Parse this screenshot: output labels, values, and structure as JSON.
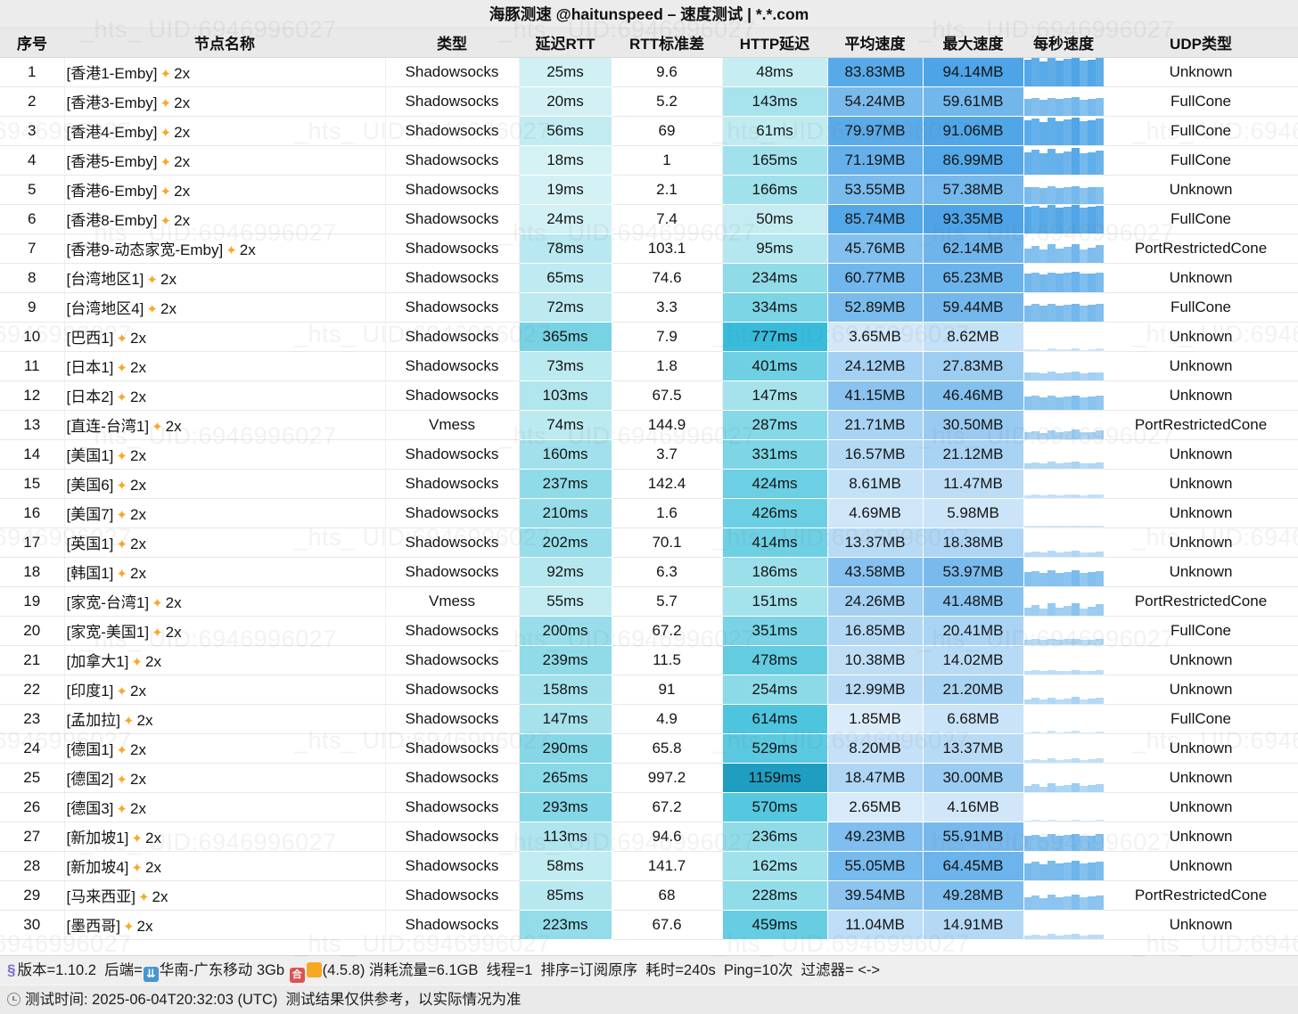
{
  "title": "海豚测速 @haitunspeed – 速度测试 | *.*.com",
  "watermark": {
    "text": "_hts_ UID:6946996027"
  },
  "icons": {
    "sparkles": "✦",
    "dna": "§",
    "clock": "css-circle-clock",
    "download": "⇊",
    "he_badge": "合",
    "orange_badge": ""
  },
  "colors": {
    "titlebar_bg": "#ececec",
    "header_bg": "#e9e9e9",
    "footer_bg": "#efefef",
    "latency_low": "#e4fbfc",
    "latency_high": "#1f9fb8",
    "speed_low": "#e8f3fc",
    "speed_high": "#4aa5e6",
    "sparkle_orange": "#f7a928"
  },
  "table": {
    "columns": [
      "序号",
      "节点名称",
      "类型",
      "延迟RTT",
      "RTT标准差",
      "HTTP延迟",
      "平均速度",
      "最大速度",
      "每秒速度",
      "UDP类型"
    ],
    "rows": [
      {
        "no": "1",
        "name": "[香港1-Emby]",
        "suffix": "2x",
        "type": "Shadowsocks",
        "rtt": "25ms",
        "std": "9.6",
        "http": "48ms",
        "avg": "83.83MB",
        "max": "94.14MB",
        "udp": "Unknown",
        "bars": [
          0.92,
          0.97,
          0.86,
          0.99,
          0.9,
          0.95,
          0.99,
          0.88,
          0.93,
          0.97
        ]
      },
      {
        "no": "2",
        "name": "[香港3-Emby]",
        "suffix": "2x",
        "type": "Shadowsocks",
        "rtt": "20ms",
        "std": "5.2",
        "http": "143ms",
        "avg": "54.24MB",
        "max": "59.61MB",
        "udp": "FullCone",
        "bars": [
          0.58,
          0.61,
          0.55,
          0.62,
          0.57,
          0.6,
          0.63,
          0.56,
          0.59,
          0.61
        ]
      },
      {
        "no": "3",
        "name": "[香港4-Emby]",
        "suffix": "2x",
        "type": "Shadowsocks",
        "rtt": "56ms",
        "std": "69",
        "http": "61ms",
        "avg": "79.97MB",
        "max": "91.06MB",
        "udp": "FullCone",
        "bars": [
          0.85,
          0.92,
          0.8,
          0.95,
          0.83,
          0.88,
          0.96,
          0.82,
          0.87,
          0.91
        ]
      },
      {
        "no": "4",
        "name": "[香港5-Emby]",
        "suffix": "2x",
        "type": "Shadowsocks",
        "rtt": "18ms",
        "std": "1",
        "http": "165ms",
        "avg": "71.19MB",
        "max": "86.99MB",
        "udp": "FullCone",
        "bars": [
          0.76,
          0.85,
          0.72,
          0.9,
          0.75,
          0.8,
          0.91,
          0.73,
          0.78,
          0.84
        ]
      },
      {
        "no": "5",
        "name": "[香港6-Emby]",
        "suffix": "2x",
        "type": "Shadowsocks",
        "rtt": "19ms",
        "std": "2.1",
        "http": "166ms",
        "avg": "53.55MB",
        "max": "57.38MB",
        "udp": "Unknown",
        "bars": [
          0.57,
          0.59,
          0.55,
          0.6,
          0.56,
          0.58,
          0.6,
          0.55,
          0.57,
          0.59
        ]
      },
      {
        "no": "6",
        "name": "[香港8-Emby]",
        "suffix": "2x",
        "type": "Shadowsocks",
        "rtt": "24ms",
        "std": "7.4",
        "http": "50ms",
        "avg": "85.74MB",
        "max": "93.35MB",
        "udp": "FullCone",
        "bars": [
          0.91,
          0.95,
          0.88,
          0.98,
          0.9,
          0.93,
          0.97,
          0.89,
          0.92,
          0.96
        ]
      },
      {
        "no": "7",
        "name": "[香港9-动态家宽-Emby]",
        "suffix": "2x",
        "type": "Shadowsocks",
        "rtt": "78ms",
        "std": "103.1",
        "http": "95ms",
        "avg": "45.76MB",
        "max": "62.14MB",
        "udp": "PortRestrictedCone",
        "bars": [
          0.5,
          0.58,
          0.45,
          0.63,
          0.48,
          0.54,
          0.64,
          0.46,
          0.52,
          0.6
        ]
      },
      {
        "no": "8",
        "name": "[台湾地区1]",
        "suffix": "2x",
        "type": "Shadowsocks",
        "rtt": "65ms",
        "std": "74.6",
        "http": "234ms",
        "avg": "60.77MB",
        "max": "65.23MB",
        "udp": "Unknown",
        "bars": [
          0.64,
          0.67,
          0.62,
          0.68,
          0.64,
          0.66,
          0.69,
          0.63,
          0.65,
          0.67
        ]
      },
      {
        "no": "9",
        "name": "[台湾地区4]",
        "suffix": "2x",
        "type": "Shadowsocks",
        "rtt": "72ms",
        "std": "3.3",
        "http": "334ms",
        "avg": "52.89MB",
        "max": "59.44MB",
        "udp": "FullCone",
        "bars": [
          0.56,
          0.6,
          0.54,
          0.62,
          0.56,
          0.58,
          0.62,
          0.55,
          0.57,
          0.6
        ]
      },
      {
        "no": "10",
        "name": "[巴西1]",
        "suffix": "2x",
        "type": "Shadowsocks",
        "rtt": "365ms",
        "std": "7.9",
        "http": "777ms",
        "avg": "3.65MB",
        "max": "8.62MB",
        "udp": "Unknown",
        "bars": [
          0.04,
          0.06,
          0.03,
          0.08,
          0.04,
          0.05,
          0.09,
          0.03,
          0.05,
          0.07
        ]
      },
      {
        "no": "11",
        "name": "[日本1]",
        "suffix": "2x",
        "type": "Shadowsocks",
        "rtt": "73ms",
        "std": "1.8",
        "http": "401ms",
        "avg": "24.12MB",
        "max": "27.83MB",
        "udp": "Unknown",
        "bars": [
          0.26,
          0.28,
          0.24,
          0.29,
          0.25,
          0.27,
          0.29,
          0.24,
          0.26,
          0.28
        ]
      },
      {
        "no": "12",
        "name": "[日本2]",
        "suffix": "2x",
        "type": "Shadowsocks",
        "rtt": "103ms",
        "std": "67.5",
        "http": "147ms",
        "avg": "41.15MB",
        "max": "46.46MB",
        "udp": "Unknown",
        "bars": [
          0.44,
          0.47,
          0.42,
          0.48,
          0.43,
          0.45,
          0.49,
          0.42,
          0.44,
          0.47
        ]
      },
      {
        "no": "13",
        "name": "[直连-台湾1]",
        "suffix": "2x",
        "type": "Vmess",
        "rtt": "74ms",
        "std": "144.9",
        "http": "287ms",
        "avg": "21.71MB",
        "max": "30.50MB",
        "udp": "PortRestrictedCone",
        "bars": [
          0.24,
          0.28,
          0.21,
          0.31,
          0.23,
          0.26,
          0.32,
          0.22,
          0.25,
          0.29
        ]
      },
      {
        "no": "14",
        "name": "[美国1]",
        "suffix": "2x",
        "type": "Shadowsocks",
        "rtt": "160ms",
        "std": "3.7",
        "http": "331ms",
        "avg": "16.57MB",
        "max": "21.12MB",
        "udp": "Unknown",
        "bars": [
          0.18,
          0.2,
          0.16,
          0.22,
          0.17,
          0.19,
          0.22,
          0.16,
          0.18,
          0.21
        ]
      },
      {
        "no": "15",
        "name": "[美国6]",
        "suffix": "2x",
        "type": "Shadowsocks",
        "rtt": "237ms",
        "std": "142.4",
        "http": "424ms",
        "avg": "8.61MB",
        "max": "11.47MB",
        "udp": "Unknown",
        "bars": [
          0.09,
          0.11,
          0.08,
          0.12,
          0.09,
          0.1,
          0.12,
          0.08,
          0.1,
          0.11
        ]
      },
      {
        "no": "16",
        "name": "[美国7]",
        "suffix": "2x",
        "type": "Shadowsocks",
        "rtt": "210ms",
        "std": "1.6",
        "http": "426ms",
        "avg": "4.69MB",
        "max": "5.98MB",
        "udp": "Unknown",
        "bars": [
          0.05,
          0.06,
          0.04,
          0.06,
          0.05,
          0.05,
          0.06,
          0.04,
          0.05,
          0.06
        ]
      },
      {
        "no": "17",
        "name": "[英国1]",
        "suffix": "2x",
        "type": "Shadowsocks",
        "rtt": "202ms",
        "std": "70.1",
        "http": "414ms",
        "avg": "13.37MB",
        "max": "18.38MB",
        "udp": "Unknown",
        "bars": [
          0.15,
          0.17,
          0.13,
          0.19,
          0.14,
          0.16,
          0.19,
          0.13,
          0.15,
          0.18
        ]
      },
      {
        "no": "18",
        "name": "[韩国1]",
        "suffix": "2x",
        "type": "Shadowsocks",
        "rtt": "92ms",
        "std": "6.3",
        "http": "186ms",
        "avg": "43.58MB",
        "max": "53.97MB",
        "udp": "Unknown",
        "bars": [
          0.47,
          0.52,
          0.44,
          0.56,
          0.46,
          0.49,
          0.56,
          0.45,
          0.48,
          0.53
        ]
      },
      {
        "no": "19",
        "name": "[家宽-台湾1]",
        "suffix": "2x",
        "type": "Vmess",
        "rtt": "55ms",
        "std": "5.7",
        "http": "151ms",
        "avg": "24.26MB",
        "max": "41.48MB",
        "udp": "PortRestrictedCone",
        "bars": [
          0.28,
          0.36,
          0.24,
          0.42,
          0.27,
          0.32,
          0.43,
          0.25,
          0.3,
          0.38
        ]
      },
      {
        "no": "20",
        "name": "[家宽-美国1]",
        "suffix": "2x",
        "type": "Shadowsocks",
        "rtt": "200ms",
        "std": "67.2",
        "http": "351ms",
        "avg": "16.85MB",
        "max": "20.41MB",
        "udp": "FullCone",
        "bars": [
          0.18,
          0.2,
          0.17,
          0.21,
          0.18,
          0.19,
          0.21,
          0.17,
          0.18,
          0.2
        ]
      },
      {
        "no": "21",
        "name": "[加拿大1]",
        "suffix": "2x",
        "type": "Shadowsocks",
        "rtt": "239ms",
        "std": "11.5",
        "http": "478ms",
        "avg": "10.38MB",
        "max": "14.02MB",
        "udp": "Unknown",
        "bars": [
          0.11,
          0.13,
          0.1,
          0.15,
          0.11,
          0.12,
          0.15,
          0.1,
          0.12,
          0.14
        ]
      },
      {
        "no": "22",
        "name": "[印度1]",
        "suffix": "2x",
        "type": "Shadowsocks",
        "rtt": "158ms",
        "std": "91",
        "http": "254ms",
        "avg": "12.99MB",
        "max": "21.20MB",
        "udp": "Unknown",
        "bars": [
          0.15,
          0.19,
          0.13,
          0.21,
          0.14,
          0.17,
          0.22,
          0.13,
          0.16,
          0.2
        ]
      },
      {
        "no": "23",
        "name": "[孟加拉]",
        "suffix": "2x",
        "type": "Shadowsocks",
        "rtt": "147ms",
        "std": "4.9",
        "http": "614ms",
        "avg": "1.85MB",
        "max": "6.68MB",
        "udp": "FullCone",
        "bars": [
          0.02,
          0.05,
          0.02,
          0.07,
          0.02,
          0.04,
          0.07,
          0.02,
          0.03,
          0.06
        ]
      },
      {
        "no": "24",
        "name": "[德国1]",
        "suffix": "2x",
        "type": "Shadowsocks",
        "rtt": "290ms",
        "std": "65.8",
        "http": "529ms",
        "avg": "8.20MB",
        "max": "13.37MB",
        "udp": "Unknown",
        "bars": [
          0.09,
          0.12,
          0.08,
          0.14,
          0.09,
          0.1,
          0.14,
          0.08,
          0.1,
          0.13
        ]
      },
      {
        "no": "25",
        "name": "[德国2]",
        "suffix": "2x",
        "type": "Shadowsocks",
        "rtt": "265ms",
        "std": "997.2",
        "http": "1159ms",
        "avg": "18.47MB",
        "max": "30.00MB",
        "udp": "Unknown",
        "bars": [
          0.21,
          0.27,
          0.18,
          0.31,
          0.2,
          0.24,
          0.31,
          0.19,
          0.22,
          0.28
        ]
      },
      {
        "no": "26",
        "name": "[德国3]",
        "suffix": "2x",
        "type": "Shadowsocks",
        "rtt": "293ms",
        "std": "67.2",
        "http": "570ms",
        "avg": "2.65MB",
        "max": "4.16MB",
        "udp": "Unknown",
        "bars": [
          0.03,
          0.04,
          0.02,
          0.04,
          0.03,
          0.03,
          0.04,
          0.02,
          0.03,
          0.04
        ]
      },
      {
        "no": "27",
        "name": "[新加坡1]",
        "suffix": "2x",
        "type": "Shadowsocks",
        "rtt": "113ms",
        "std": "94.6",
        "http": "236ms",
        "avg": "49.23MB",
        "max": "55.91MB",
        "udp": "Unknown",
        "bars": [
          0.52,
          0.56,
          0.5,
          0.58,
          0.52,
          0.54,
          0.59,
          0.51,
          0.53,
          0.57
        ]
      },
      {
        "no": "28",
        "name": "[新加坡4]",
        "suffix": "2x",
        "type": "Shadowsocks",
        "rtt": "58ms",
        "std": "141.7",
        "http": "162ms",
        "avg": "55.05MB",
        "max": "64.45MB",
        "udp": "Unknown",
        "bars": [
          0.59,
          0.64,
          0.56,
          0.67,
          0.58,
          0.61,
          0.67,
          0.57,
          0.6,
          0.65
        ]
      },
      {
        "no": "29",
        "name": "[马来西亚]",
        "suffix": "2x",
        "type": "Shadowsocks",
        "rtt": "85ms",
        "std": "68",
        "http": "228ms",
        "avg": "39.54MB",
        "max": "49.28MB",
        "udp": "PortRestrictedCone",
        "bars": [
          0.43,
          0.48,
          0.4,
          0.51,
          0.42,
          0.45,
          0.51,
          0.41,
          0.44,
          0.49
        ]
      },
      {
        "no": "30",
        "name": "[墨西哥]",
        "suffix": "2x",
        "type": "Shadowsocks",
        "rtt": "223ms",
        "std": "67.6",
        "http": "459ms",
        "avg": "11.04MB",
        "max": "14.91MB",
        "udp": "Unknown",
        "bars": [
          0.12,
          0.14,
          0.11,
          0.16,
          0.12,
          0.13,
          0.16,
          0.11,
          0.13,
          0.15
        ]
      }
    ]
  },
  "footer": {
    "line1_prefix": "版本=1.10.2  后端=",
    "backend": "华南-广东移动 3Gb ",
    "line1_suffix": "(4.5.8) 消耗流量=6.1GB  线程=1  排序=订阅原序  耗时=240s  Ping=10次  过滤器= <->",
    "line2": "测试时间: 2025-06-04T20:32:03 (UTC)  测试结果仅供参考，以实际情况为准"
  }
}
